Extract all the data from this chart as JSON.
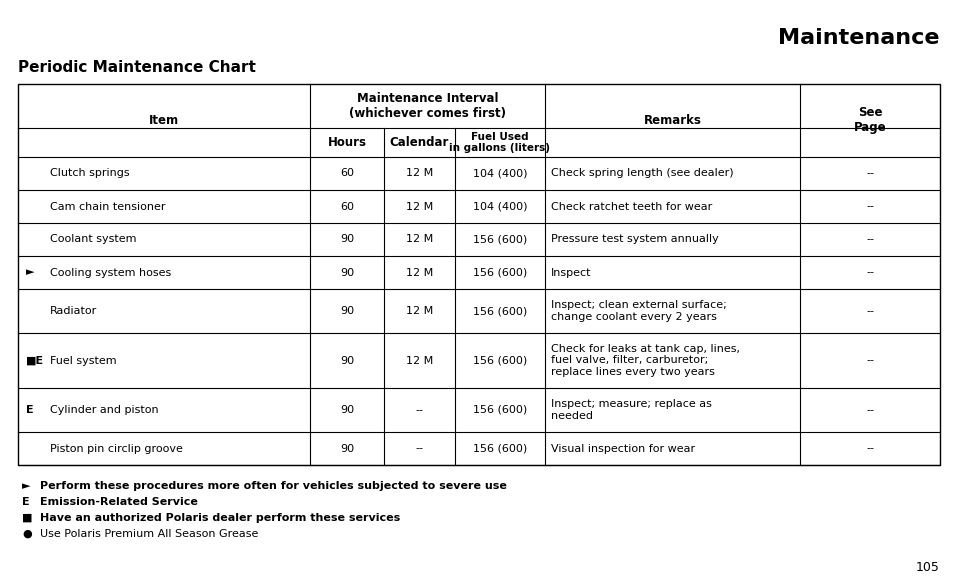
{
  "title": "Maintenance",
  "subtitle": "Periodic Maintenance Chart",
  "page_number": "105",
  "bg": "#ffffff",
  "col_headers_item": "Item",
  "col_headers_maint": "Maintenance Interval\n(whichever comes first)",
  "col_headers_hours": "Hours",
  "col_headers_calendar": "Calendar",
  "col_headers_fuel": "Fuel Used\nin gallons (liters)",
  "col_headers_remarks": "Remarks",
  "col_headers_see_page": "See\nPage",
  "rows": [
    {
      "prefix": "",
      "item": "Clutch springs",
      "hours": "60",
      "calendar": "12 M",
      "fuel": "104 (400)",
      "remarks": "Check spring length (see dealer)",
      "see_page": "--"
    },
    {
      "prefix": "",
      "item": "Cam chain tensioner",
      "hours": "60",
      "calendar": "12 M",
      "fuel": "104 (400)",
      "remarks": "Check ratchet teeth for wear",
      "see_page": "--"
    },
    {
      "prefix": "",
      "item": "Coolant system",
      "hours": "90",
      "calendar": "12 M",
      "fuel": "156 (600)",
      "remarks": "Pressure test system annually",
      "see_page": "--"
    },
    {
      "prefix": "►",
      "item": "Cooling system hoses",
      "hours": "90",
      "calendar": "12 M",
      "fuel": "156 (600)",
      "remarks": "Inspect",
      "see_page": "--"
    },
    {
      "prefix": "",
      "item": "Radiator",
      "hours": "90",
      "calendar": "12 M",
      "fuel": "156 (600)",
      "remarks": "Inspect; clean external surface;\nchange coolant every 2 years",
      "see_page": "--"
    },
    {
      "prefix": "■E",
      "item": "Fuel system",
      "hours": "90",
      "calendar": "12 M",
      "fuel": "156 (600)",
      "remarks": "Check for leaks at tank cap, lines,\nfuel valve, filter, carburetor;\nreplace lines every two years",
      "see_page": "--"
    },
    {
      "prefix": "E",
      "item": "Cylinder and piston",
      "hours": "90",
      "calendar": "--",
      "fuel": "156 (600)",
      "remarks": "Inspect; measure; replace as\nneeded",
      "see_page": "--"
    },
    {
      "prefix": "",
      "item": "Piston pin circlip groove",
      "hours": "90",
      "calendar": "--",
      "fuel": "156 (600)",
      "remarks": "Visual inspection for wear",
      "see_page": "--"
    }
  ],
  "footnotes": [
    {
      "symbol": "►",
      "bold": true,
      "text": "Perform these procedures more often for vehicles subjected to severe use"
    },
    {
      "symbol": "E",
      "bold": true,
      "text": "Emission-Related Service"
    },
    {
      "symbol": "■",
      "bold": true,
      "text": "Have an authorized Polaris dealer perform these services"
    },
    {
      "symbol": "●",
      "bold": false,
      "text": "Use Polaris Premium All Season Grease"
    }
  ]
}
